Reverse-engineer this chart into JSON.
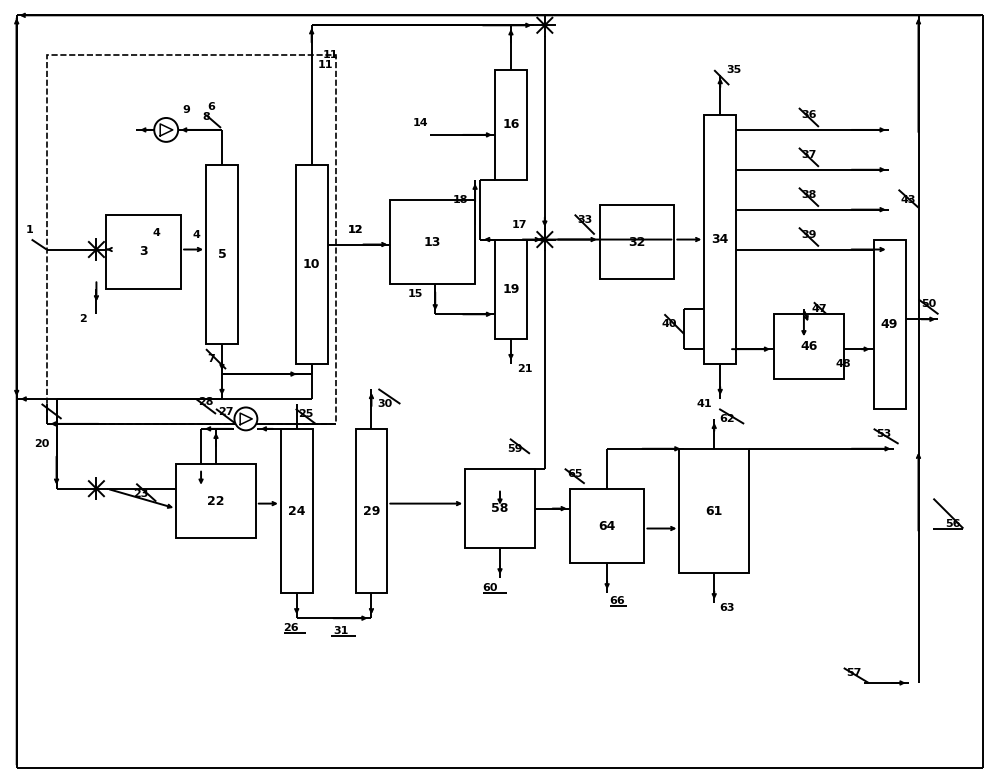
{
  "bg": "#ffffff",
  "lc": "#000000",
  "lw": 1.4
}
